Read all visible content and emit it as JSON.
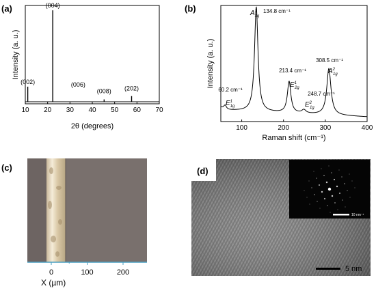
{
  "panels": {
    "a": {
      "label": "(a)",
      "chart_data": {
        "type": "line",
        "title": "",
        "xlabel": "2θ (degrees)",
        "ylabel": "Intensity (a. u.)",
        "xlim": [
          10,
          70
        ],
        "xticks": [
          "10",
          "20",
          "30",
          "40",
          "50",
          "60",
          "70"
        ],
        "series": [
          {
            "peaks": [
              {
                "x": 11.1,
                "height": 0.16,
                "label": "(002)"
              },
              {
                "x": 22.3,
                "height": 0.97,
                "label": "(004)"
              },
              {
                "x": 33.7,
                "height": 0.0,
                "label": "(006)"
              },
              {
                "x": 45.3,
                "height": 0.025,
                "label": "(008)"
              },
              {
                "x": 57.6,
                "height": 0.06,
                "label": "(202)"
              }
            ]
          }
        ],
        "grid": false
      }
    },
    "b": {
      "label": "(b)",
      "chart_data": {
        "type": "line",
        "title": "",
        "xlabel": "Raman shift (cm⁻¹)",
        "ylabel": "Intensity (a. u.)",
        "xlim": [
          50,
          400
        ],
        "xticks": [
          "100",
          "200",
          "300",
          "400"
        ],
        "series": [
          {
            "peaks": [
              {
                "x": 60.2,
                "height": 0.04,
                "width": 4,
                "value_label": "60.2 cm⁻¹",
                "mode": "E",
                "mode_sup": "1",
                "mode_sub": "1g"
              },
              {
                "x": 134.8,
                "height": 0.9,
                "width": 5,
                "value_label": "134.8 cm⁻¹",
                "mode": "A",
                "mode_sup": "1",
                "mode_sub": "1g"
              },
              {
                "x": 213.4,
                "height": 0.27,
                "width": 5,
                "value_label": "213.4 cm⁻¹",
                "mode": "E",
                "mode_sup": "1",
                "mode_sub": "2g"
              },
              {
                "x": 248.7,
                "height": 0.03,
                "width": 6,
                "value_label": "248.7 cm⁻¹",
                "mode": "E",
                "mode_sup": "2",
                "mode_sub": "1g"
              },
              {
                "x": 308.5,
                "height": 0.4,
                "width": 6,
                "value_label": "308.5 cm⁻¹",
                "mode": "A",
                "mode_sup": "2",
                "mode_sub": "1g"
              }
            ]
          }
        ],
        "grid": false
      }
    },
    "c": {
      "label": "(c)",
      "xlabel": "X (µm)",
      "xticks": [
        "0",
        "100",
        "200"
      ],
      "colors": {
        "background": "#7a706d",
        "flake": "#e8dcc4"
      }
    },
    "d": {
      "label": "(d)",
      "scale_bar": "5 nm",
      "inset_scale_bar": "10 nm⁻¹"
    }
  }
}
